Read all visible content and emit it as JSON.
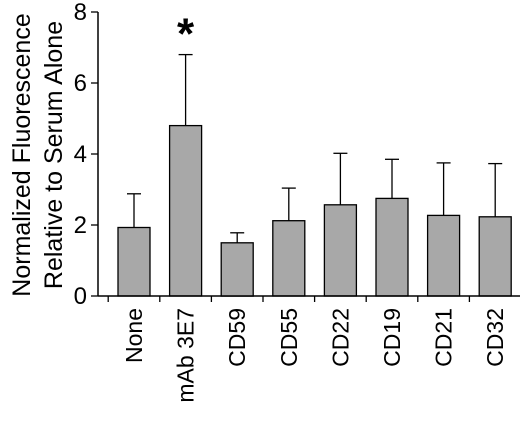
{
  "chart_data": {
    "type": "bar",
    "ylabel_lines": [
      "Normalized Fluorescence",
      "Relative to Serum Alone"
    ],
    "xlabel": "",
    "ylim": [
      0,
      8
    ],
    "yticks": [
      0,
      2,
      4,
      6,
      8
    ],
    "categories": [
      "None",
      "mAb 3E7",
      "CD59",
      "CD55",
      "CD22",
      "CD19",
      "CD21",
      "CD32"
    ],
    "values": [
      1.93,
      4.8,
      1.5,
      2.12,
      2.57,
      2.75,
      2.27,
      2.23
    ],
    "error_plus": [
      0.95,
      2.0,
      0.28,
      0.92,
      1.45,
      1.1,
      1.48,
      1.5
    ],
    "significance": [
      {
        "category": "mAb 3E7",
        "marker": "*"
      }
    ],
    "bar_color": "#a8a8a8",
    "grid": false,
    "legend": "none"
  }
}
